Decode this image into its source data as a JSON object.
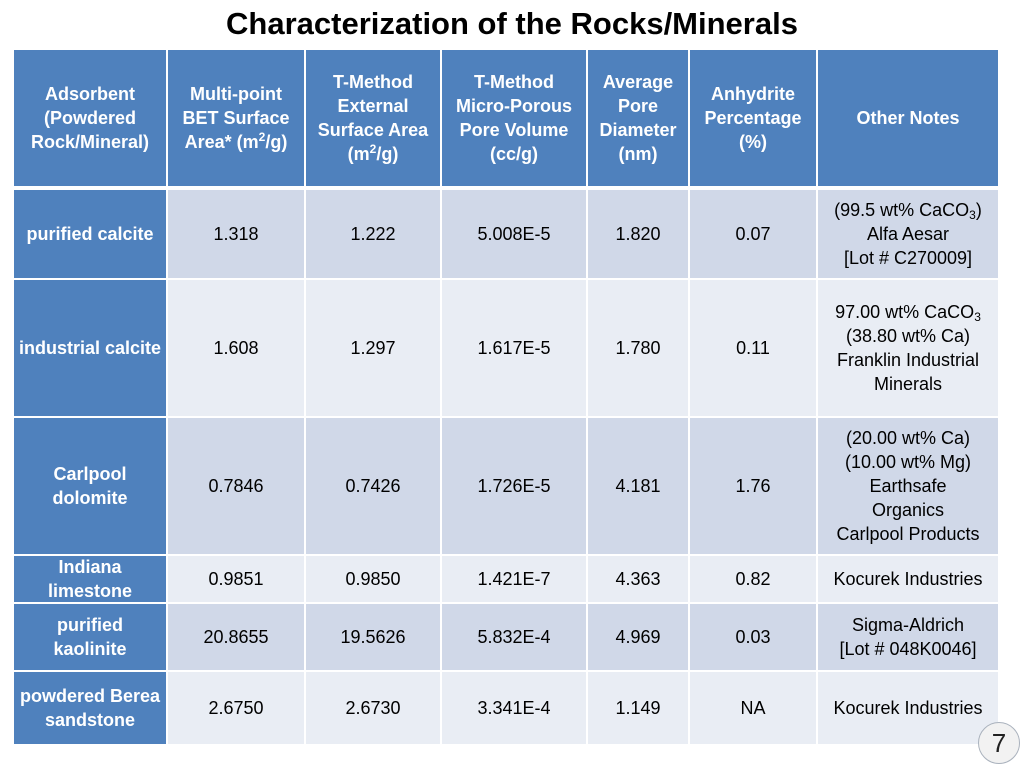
{
  "title": "Characterization of the Rocks/Minerals",
  "page_number": "7",
  "colors": {
    "header_blue": "#4f81bd",
    "row_light": "#d0d8e8",
    "row_lighter": "#e9edf4"
  },
  "headers": {
    "adsorbent": "Adsorbent (Powdered Rock/Mineral)",
    "bet_pre": "Multi-point BET Surface Area* (m",
    "bet_sup": "2",
    "bet_post": "/g)",
    "tmethod_ext_pre": "T-Method External Surface Area (m",
    "tmethod_ext_sup": "2",
    "tmethod_ext_post": "/g)",
    "tmethod_micro": "T-Method Micro-Porous Pore Volume (cc/g)",
    "pore_diameter": "Average Pore Diameter (nm)",
    "anhydrite": "Anhydrite Percentage (%)",
    "notes": "Other Notes"
  },
  "rows": [
    {
      "name": "purified calcite",
      "bet": "1.318",
      "ext": "1.222",
      "micro": "5.008E-5",
      "diam": "1.820",
      "anhydrite": "0.07",
      "notes": {
        "l1_pre": "(99.5 wt% CaCO",
        "l1_sub": "3",
        "l1_post": ")",
        "l2": "Alfa Aesar",
        "l3": "[Lot # C270009]"
      }
    },
    {
      "name": "industrial calcite",
      "bet": "1.608",
      "ext": "1.297",
      "micro": "1.617E-5",
      "diam": "1.780",
      "anhydrite": "0.11",
      "notes": {
        "l1_pre": "97.00 wt% CaCO",
        "l1_sub": "3",
        "l2": "(38.80 wt% Ca)",
        "l3": "Franklin Industrial",
        "l4": "Minerals"
      }
    },
    {
      "name": "Carlpool dolomite",
      "bet": "0.7846",
      "ext": "0.7426",
      "micro": "1.726E-5",
      "diam": "4.181",
      "anhydrite": "1.76",
      "notes": {
        "l1": "(20.00 wt% Ca)",
        "l2": "(10.00 wt% Mg)",
        "l3": "Earthsafe",
        "l4": "Organics",
        "l5": "Carlpool Products"
      }
    },
    {
      "name": "Indiana limestone",
      "bet": "0.9851",
      "ext": "0.9850",
      "micro": "1.421E-7",
      "diam": "4.363",
      "anhydrite": "0.82",
      "notes": {
        "l1": "Kocurek Industries"
      }
    },
    {
      "name": "purified kaolinite",
      "bet": "20.8655",
      "ext": "19.5626",
      "micro": "5.832E-4",
      "diam": "4.969",
      "anhydrite": "0.03",
      "notes": {
        "l1": "Sigma-Aldrich",
        "l2": "[Lot # 048K0046]"
      }
    },
    {
      "name": "powdered Berea sandstone",
      "bet": "2.6750",
      "ext": "2.6730",
      "micro": "3.341E-4",
      "diam": "1.149",
      "anhydrite": "NA",
      "notes": {
        "l1": "Kocurek Industries"
      }
    }
  ]
}
